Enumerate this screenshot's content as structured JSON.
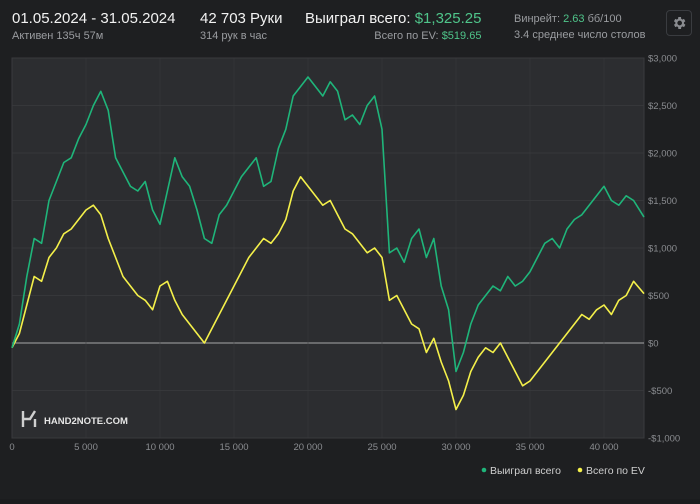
{
  "header": {
    "date_range": "01.05.2024 - 31.05.2024",
    "active_time": "Активен 135ч 57м",
    "hands": "42 703 Руки",
    "hands_per_hour": "314 рук в час",
    "won_label": "Выиграл всего:",
    "won_value": "$1,325.25",
    "ev_label": "Всего по EV:",
    "ev_value": "$519.65",
    "winrate_label": "Винрейт:",
    "winrate_value": "2.63",
    "winrate_unit": "бб/100",
    "tables": "3.4 среднее число столов"
  },
  "icons": {
    "settings": "gear-icon",
    "logo": "hand2note-logo-icon"
  },
  "logo": {
    "text": "HAND2NOTE.COM"
  },
  "colors": {
    "won": "#1fb57a",
    "ev": "#f4f04a",
    "background": "#1e1f21",
    "grid": "#3a3b3e",
    "zero": "#cfcfcf"
  },
  "chart_data": {
    "type": "line",
    "xlim": [
      0,
      42703
    ],
    "ylim": [
      -1000,
      3000
    ],
    "x_ticks": [
      0,
      5000,
      10000,
      15000,
      20000,
      25000,
      30000,
      35000,
      40000
    ],
    "x_tick_labels": [
      "0",
      "5 000",
      "10 000",
      "15 000",
      "20 000",
      "25 000",
      "30 000",
      "35 000",
      "40 000"
    ],
    "y_ticks": [
      3000,
      2500,
      2000,
      1500,
      1000,
      500,
      0,
      -500,
      -1000
    ],
    "y_tick_labels": [
      "$3,000",
      "$2,500",
      "$2,000",
      "$1,500",
      "$1,000",
      "$500",
      "$0",
      "-$500",
      "-$1,000"
    ],
    "grid": true,
    "legend_position": "bottom-right",
    "series": [
      {
        "name": "Выиграл всего",
        "x": [
          0,
          500,
          1000,
          1500,
          2000,
          2500,
          3000,
          3500,
          4000,
          4500,
          5000,
          5500,
          6000,
          6500,
          7000,
          7500,
          8000,
          8500,
          9000,
          9500,
          10000,
          10500,
          11000,
          11500,
          12000,
          12500,
          13000,
          13500,
          14000,
          14500,
          15000,
          15500,
          16000,
          16500,
          17000,
          17500,
          18000,
          18500,
          19000,
          19500,
          20000,
          20500,
          21000,
          21500,
          22000,
          22500,
          23000,
          23500,
          24000,
          24500,
          25000,
          25500,
          26000,
          26500,
          27000,
          27500,
          28000,
          28500,
          29000,
          29500,
          30000,
          30500,
          31000,
          31500,
          32000,
          32500,
          33000,
          33500,
          34000,
          34500,
          35000,
          35500,
          36000,
          36500,
          37000,
          37500,
          38000,
          38500,
          39000,
          39500,
          40000,
          40500,
          41000,
          41500,
          42000,
          42703
        ],
        "values": [
          -50,
          200,
          700,
          1100,
          1050,
          1500,
          1700,
          1900,
          1950,
          2150,
          2300,
          2500,
          2650,
          2450,
          1950,
          1800,
          1650,
          1600,
          1700,
          1400,
          1250,
          1600,
          1950,
          1750,
          1650,
          1400,
          1100,
          1050,
          1350,
          1450,
          1600,
          1750,
          1850,
          1950,
          1650,
          1700,
          2050,
          2250,
          2600,
          2700,
          2800,
          2700,
          2600,
          2750,
          2650,
          2350,
          2400,
          2300,
          2500,
          2600,
          2250,
          950,
          1000,
          850,
          1100,
          1200,
          900,
          1100,
          600,
          350,
          -300,
          -100,
          200,
          400,
          500,
          600,
          550,
          700,
          600,
          650,
          750,
          900,
          1050,
          1100,
          1000,
          1200,
          1300,
          1350,
          1450,
          1550,
          1650,
          1500,
          1450,
          1550,
          1500,
          1325
        ]
      },
      {
        "name": "Всего по EV",
        "x": [
          0,
          500,
          1000,
          1500,
          2000,
          2500,
          3000,
          3500,
          4000,
          4500,
          5000,
          5500,
          6000,
          6500,
          7000,
          7500,
          8000,
          8500,
          9000,
          9500,
          10000,
          10500,
          11000,
          11500,
          12000,
          12500,
          13000,
          13500,
          14000,
          14500,
          15000,
          15500,
          16000,
          16500,
          17000,
          17500,
          18000,
          18500,
          19000,
          19500,
          20000,
          20500,
          21000,
          21500,
          22000,
          22500,
          23000,
          23500,
          24000,
          24500,
          25000,
          25500,
          26000,
          26500,
          27000,
          27500,
          28000,
          28500,
          29000,
          29500,
          30000,
          30500,
          31000,
          31500,
          32000,
          32500,
          33000,
          33500,
          34000,
          34500,
          35000,
          35500,
          36000,
          36500,
          37000,
          37500,
          38000,
          38500,
          39000,
          39500,
          40000,
          40500,
          41000,
          41500,
          42000,
          42703
        ],
        "values": [
          -50,
          100,
          400,
          700,
          650,
          900,
          1000,
          1150,
          1200,
          1300,
          1400,
          1450,
          1350,
          1100,
          900,
          700,
          600,
          500,
          450,
          350,
          600,
          650,
          450,
          300,
          200,
          100,
          0,
          150,
          300,
          450,
          600,
          750,
          900,
          1000,
          1100,
          1050,
          1150,
          1300,
          1600,
          1750,
          1650,
          1550,
          1450,
          1500,
          1350,
          1200,
          1150,
          1050,
          950,
          1000,
          900,
          450,
          500,
          350,
          200,
          150,
          -100,
          50,
          -200,
          -400,
          -700,
          -550,
          -300,
          -150,
          -50,
          -100,
          0,
          -150,
          -300,
          -450,
          -400,
          -300,
          -200,
          -100,
          0,
          100,
          200,
          300,
          250,
          350,
          400,
          300,
          450,
          500,
          650,
          520
        ]
      }
    ]
  }
}
